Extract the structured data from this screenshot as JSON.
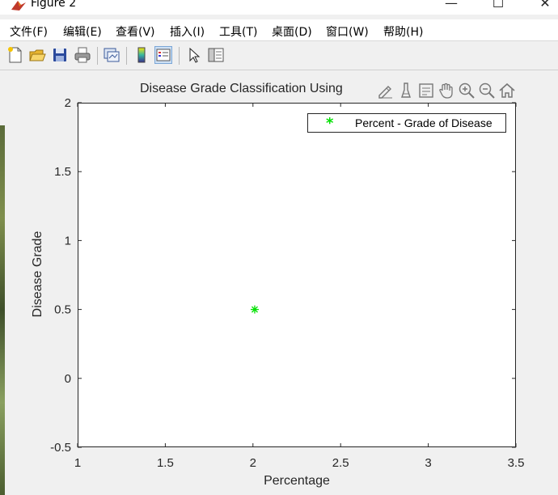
{
  "window": {
    "title": "Figure 2",
    "controls": {
      "minimize": "—",
      "maximize": "☐",
      "close": "✕"
    }
  },
  "menu": [
    {
      "label": "文件(F)"
    },
    {
      "label": "编辑(E)"
    },
    {
      "label": "查看(V)"
    },
    {
      "label": "插入(I)"
    },
    {
      "label": "工具(T)"
    },
    {
      "label": "桌面(D)"
    },
    {
      "label": "窗口(W)"
    },
    {
      "label": "帮助(H)"
    }
  ],
  "toolbar": [
    {
      "icon": "new-figure-icon"
    },
    {
      "icon": "open-file-icon"
    },
    {
      "icon": "save-icon"
    },
    {
      "icon": "print-icon"
    },
    {
      "icon": "link-plot-icon"
    },
    {
      "icon": "colorbar-icon"
    },
    {
      "icon": "legend-icon"
    },
    {
      "icon": "edit-plot-arrow-icon"
    },
    {
      "icon": "property-inspector-icon"
    }
  ],
  "axes_toolbar": [
    {
      "icon": "brush-edit-icon"
    },
    {
      "icon": "data-brush-icon"
    },
    {
      "icon": "data-tips-icon"
    },
    {
      "icon": "pan-hand-icon"
    },
    {
      "icon": "zoom-in-icon"
    },
    {
      "icon": "zoom-out-icon"
    },
    {
      "icon": "home-restore-icon"
    }
  ],
  "chart_data": {
    "type": "scatter",
    "title": "Disease Grade Classification Using",
    "xlabel": "Percentage",
    "ylabel": "Disease Grade",
    "xlim": [
      1,
      3.5
    ],
    "ylim": [
      -0.5,
      2
    ],
    "xticks": [
      1,
      1.5,
      2,
      2.5,
      3,
      3.5
    ],
    "xtick_labels": [
      "1",
      "1.5",
      "2",
      "2.5",
      "3",
      "3.5"
    ],
    "yticks": [
      -0.5,
      0,
      0.5,
      1,
      1.5,
      2
    ],
    "ytick_labels": [
      "-0.5",
      "0",
      "0.5",
      "1",
      "1.5",
      "2"
    ],
    "grid": false,
    "legend_position": "top-right",
    "series": [
      {
        "name": "Percent - Grade of Disease",
        "marker": "*",
        "color": "#00e000",
        "points": [
          {
            "x": 2.01,
            "y": 0.5
          }
        ]
      }
    ]
  }
}
